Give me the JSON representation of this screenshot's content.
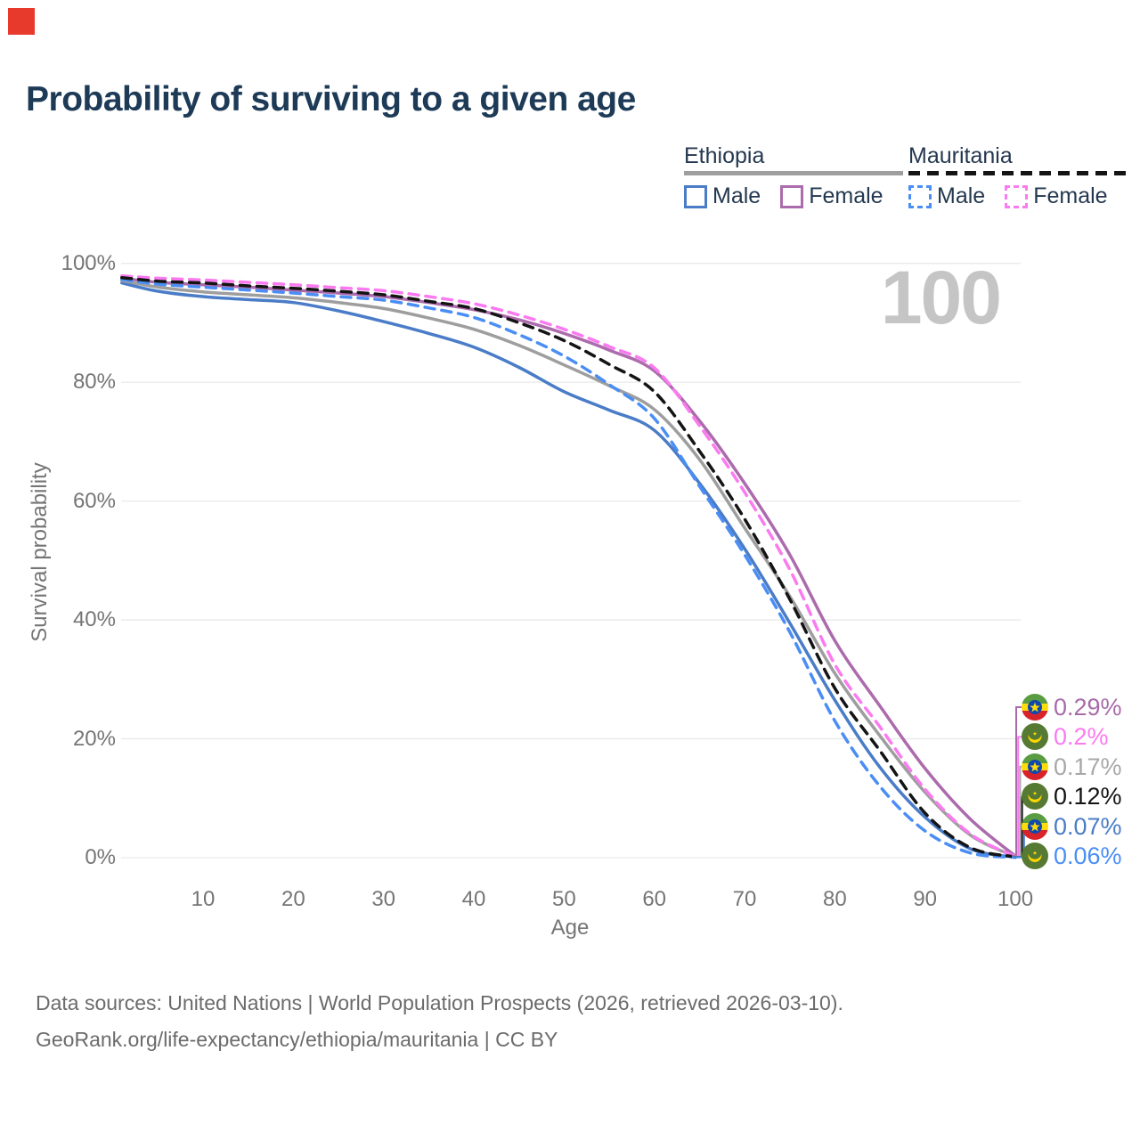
{
  "marker": {
    "color": "#e7392c"
  },
  "header": {
    "title": "Probability of surviving to a given age"
  },
  "legend": {
    "groups": [
      {
        "label": "Ethiopia",
        "line_style": "solid",
        "underline_color": "#9e9e9e",
        "items": [
          {
            "label": "Male",
            "color": "#4a7cc7",
            "dashed": false
          },
          {
            "label": "Female",
            "color": "#ac6bac",
            "dashed": false
          }
        ]
      },
      {
        "label": "Mauritania",
        "line_style": "dashed",
        "underline_color": "#141414",
        "items": [
          {
            "label": "Male",
            "color": "#4a8ef5",
            "dashed": true
          },
          {
            "label": "Female",
            "color": "#fb7af0",
            "dashed": true
          }
        ]
      }
    ]
  },
  "watermark_age_counter": "100",
  "chart_data": {
    "type": "line",
    "title": "Probability of surviving to a given age",
    "xlabel": "Age",
    "ylabel": "Survival probability",
    "xlim": [
      0,
      100
    ],
    "ylim": [
      0,
      100
    ],
    "grid": "horizontal-only",
    "x_ticks": [
      10,
      20,
      30,
      40,
      50,
      60,
      70,
      80,
      90,
      100
    ],
    "y_ticks": [
      {
        "value": 0,
        "label": "0%"
      },
      {
        "value": 20,
        "label": "20%"
      },
      {
        "value": 40,
        "label": "40%"
      },
      {
        "value": 60,
        "label": "60%"
      },
      {
        "value": 80,
        "label": "80%"
      },
      {
        "value": 100,
        "label": "100%"
      }
    ],
    "x": [
      1,
      5,
      10,
      15,
      20,
      25,
      30,
      35,
      40,
      45,
      50,
      55,
      60,
      65,
      70,
      75,
      80,
      85,
      90,
      95,
      100
    ],
    "series": [
      {
        "name": "Ethiopia Male",
        "country": "Ethiopia",
        "sex": "Male",
        "color": "#4a7cc7",
        "dash": "solid",
        "values": [
          96.7,
          95.3,
          94.4,
          93.9,
          93.4,
          92.0,
          90.2,
          88.2,
          85.9,
          82.5,
          78.4,
          75.3,
          71.9,
          63.0,
          52.0,
          39.5,
          26.5,
          15.2,
          6.8,
          1.5,
          0.07
        ]
      },
      {
        "name": "Ethiopia Female",
        "country": "Ethiopia",
        "sex": "Female",
        "color": "#ac6bac",
        "dash": "solid",
        "values": [
          97.5,
          96.8,
          96.4,
          96.0,
          95.5,
          95.0,
          94.4,
          93.4,
          92.2,
          90.5,
          88.2,
          85.4,
          81.9,
          73.5,
          63.0,
          51.0,
          36.5,
          25.5,
          15.0,
          6.5,
          0.29
        ]
      },
      {
        "name": "Ethiopia Both sexes",
        "country": "Ethiopia",
        "sex": "Both",
        "color": "#9e9e9e",
        "dash": "solid",
        "values": [
          97.1,
          96.0,
          95.2,
          94.7,
          94.2,
          93.4,
          92.4,
          90.8,
          88.9,
          86.2,
          82.9,
          79.4,
          75.4,
          67.0,
          55.5,
          44.0,
          31.0,
          20.5,
          11.0,
          3.8,
          0.17
        ]
      },
      {
        "name": "Mauritania Male",
        "country": "Mauritania",
        "sex": "Male",
        "color": "#4a8ef5",
        "dash": "dashed",
        "values": [
          97.3,
          96.5,
          96.0,
          95.5,
          95.0,
          94.4,
          93.8,
          92.5,
          90.9,
          88.0,
          84.4,
          79.6,
          73.9,
          62.5,
          51.0,
          38.0,
          23.0,
          12.0,
          4.5,
          0.8,
          0.06
        ]
      },
      {
        "name": "Mauritania Female",
        "country": "Mauritania",
        "sex": "Female",
        "color": "#fb7af0",
        "dash": "dashed",
        "values": [
          97.9,
          97.5,
          97.2,
          96.8,
          96.4,
          95.9,
          95.4,
          94.4,
          93.2,
          91.3,
          88.9,
          86.0,
          82.4,
          72.7,
          61.5,
          48.5,
          32.5,
          22.0,
          11.5,
          4.0,
          0.2
        ]
      },
      {
        "name": "Mauritania Both sexes",
        "country": "Mauritania",
        "sex": "Both",
        "color": "#141414",
        "dash": "dashed",
        "values": [
          97.6,
          97.0,
          96.7,
          96.2,
          95.8,
          95.3,
          94.7,
          93.6,
          92.4,
          90.0,
          87.0,
          83.0,
          78.4,
          68.4,
          57.0,
          43.5,
          28.5,
          18.0,
          7.5,
          1.7,
          0.12
        ]
      }
    ],
    "end_labels": [
      {
        "text": "0.29%",
        "color": "#a86ba8",
        "flag": "ethiopia",
        "series": "Ethiopia Female"
      },
      {
        "text": "0.2%",
        "color": "#fb7af0",
        "flag": "mauritania",
        "series": "Mauritania Female"
      },
      {
        "text": "0.17%",
        "color": "#a8a8a8",
        "flag": "ethiopia",
        "series": "Ethiopia Both sexes"
      },
      {
        "text": "0.12%",
        "color": "#141414",
        "flag": "mauritania",
        "series": "Mauritania Both sexes"
      },
      {
        "text": "0.07%",
        "color": "#4a7cc7",
        "flag": "ethiopia",
        "series": "Ethiopia Male"
      },
      {
        "text": "0.06%",
        "color": "#4a8ef5",
        "flag": "mauritania",
        "series": "Mauritania Male"
      }
    ],
    "colors": {
      "gridline": "#e9e9e9",
      "axis_text": "#757575"
    }
  },
  "footer": {
    "line1": "Data sources: United Nations | World Population Prospects (2026, retrieved 2026-03-10).",
    "line2": "GeoRank.org/life-expectancy/ethiopia/mauritania | CC BY"
  }
}
